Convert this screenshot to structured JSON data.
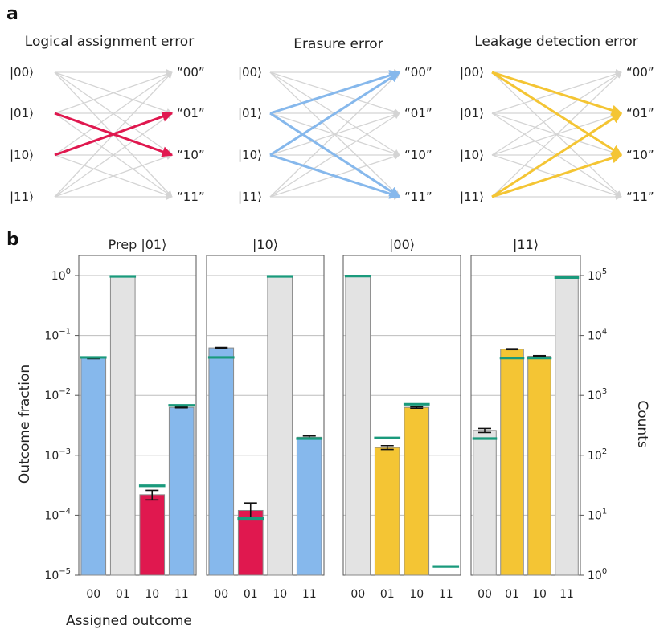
{
  "panel_a": {
    "letter": "a",
    "diagrams": [
      {
        "title": "Logical assignment error",
        "inputs": [
          "|00⟩",
          "|01⟩",
          "|10⟩",
          "|11⟩"
        ],
        "outputs": [
          "“00”",
          "“01”",
          "“10”",
          "“11”"
        ],
        "highlight_color": "#e0184f",
        "highlight_edges": [
          [
            1,
            2
          ],
          [
            2,
            1
          ]
        ]
      },
      {
        "title": "Erasure error",
        "inputs": [
          "|00⟩",
          "|01⟩",
          "|10⟩",
          "|11⟩"
        ],
        "outputs": [
          "“00”",
          "“01”",
          "“10”",
          "“11”"
        ],
        "highlight_color": "#86b8ec",
        "highlight_edges": [
          [
            1,
            0
          ],
          [
            1,
            3
          ],
          [
            2,
            0
          ],
          [
            2,
            3
          ]
        ]
      },
      {
        "title": "Leakage detection error",
        "inputs": [
          "|00⟩",
          "|01⟩",
          "|10⟩",
          "|11⟩"
        ],
        "outputs": [
          "“00”",
          "“01”",
          "“10”",
          "“11”"
        ],
        "highlight_color": "#f4c534",
        "highlight_edges": [
          [
            0,
            1
          ],
          [
            0,
            2
          ],
          [
            3,
            1
          ],
          [
            3,
            2
          ]
        ]
      }
    ],
    "gray_color": "#d4d4d4"
  },
  "chart_data": {
    "letter": "b",
    "type": "bar",
    "yscale": "log",
    "ylim": [
      1e-05,
      1
    ],
    "ylabel": "Outcome fraction",
    "y2label": "Counts",
    "y2lim": [
      1,
      100000
    ],
    "xlabel": "Assigned outcome",
    "yticks": [
      "10^0",
      "10^-1",
      "10^-2",
      "10^-3",
      "10^-4",
      "10^-5"
    ],
    "y2ticks": [
      "10^5",
      "10^4",
      "10^3",
      "10^2",
      "10^1",
      "10^0"
    ],
    "grid": true,
    "panels": [
      {
        "title": "Prep |01⟩",
        "categories": [
          "00",
          "01",
          "10",
          "11"
        ],
        "values": [
          0.042,
          1.0,
          0.00022,
          0.0063
        ],
        "colors": [
          "#86b8ec",
          "#e3e3e3",
          "#e0184f",
          "#86b8ec"
        ],
        "error_low": [
          0.041,
          null,
          0.00018,
          0.0062
        ],
        "error_high": [
          0.043,
          null,
          0.00026,
          0.0064
        ],
        "reference": [
          0.043,
          0.97,
          0.00031,
          0.0068
        ]
      },
      {
        "title": "|10⟩",
        "categories": [
          "00",
          "01",
          "10",
          "11"
        ],
        "values": [
          0.062,
          0.00012,
          1.0,
          0.002
        ],
        "colors": [
          "#86b8ec",
          "#e0184f",
          "#e3e3e3",
          "#86b8ec"
        ],
        "error_low": [
          0.061,
          9e-05,
          null,
          0.0019
        ],
        "error_high": [
          0.063,
          0.00016,
          null,
          0.0021
        ],
        "reference": [
          0.043,
          8.8e-05,
          0.97,
          0.0019
        ]
      },
      {
        "title": "|00⟩",
        "categories": [
          "00",
          "01",
          "10",
          "11"
        ],
        "values": [
          1.0,
          0.00135,
          0.0063,
          null
        ],
        "colors": [
          "#e3e3e3",
          "#f4c534",
          "#f4c534",
          "#f4c534"
        ],
        "error_low": [
          null,
          0.00125,
          0.0061,
          null
        ],
        "error_high": [
          null,
          0.00145,
          0.0065,
          null
        ],
        "reference": [
          0.98,
          0.00195,
          0.0071,
          1.4e-05
        ]
      },
      {
        "title": "|11⟩",
        "categories": [
          "00",
          "01",
          "10",
          "11"
        ],
        "values": [
          0.0026,
          0.059,
          0.045,
          1.0
        ],
        "colors": [
          "#e3e3e3",
          "#f4c534",
          "#f4c534",
          "#e3e3e3"
        ],
        "error_low": [
          0.0024,
          0.058,
          0.044,
          null
        ],
        "error_high": [
          0.0028,
          0.06,
          0.046,
          null
        ],
        "reference": [
          0.0019,
          0.042,
          0.042,
          0.93
        ]
      }
    ],
    "reference_color": "#1a9a7c",
    "error_color": "#111111"
  }
}
